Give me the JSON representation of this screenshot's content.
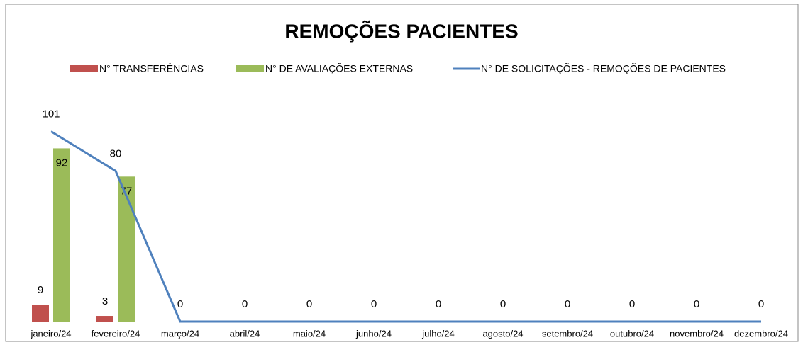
{
  "chart_data": {
    "type": "bar-line",
    "title": "REMOÇÕES PACIENTES",
    "categories": [
      "janeiro/24",
      "fevereiro/24",
      "março/24",
      "abril/24",
      "maio/24",
      "junho/24",
      "julho/24",
      "agosto/24",
      "setembro/24",
      "outubro/24",
      "novembro/24",
      "dezembro/24"
    ],
    "series": [
      {
        "name": "N° TRANSFERÊNCIAS",
        "type": "bar",
        "color": "#c0504d",
        "values": [
          9,
          3,
          null,
          null,
          null,
          null,
          null,
          null,
          null,
          null,
          null,
          null
        ]
      },
      {
        "name": "N° DE AVALIAÇÕES EXTERNAS",
        "type": "bar",
        "color": "#9bbb59",
        "values": [
          92,
          77,
          null,
          null,
          null,
          null,
          null,
          null,
          null,
          null,
          null,
          null
        ]
      },
      {
        "name": "N° DE SOLICITAÇÕES - REMOÇÕES DE PACIENTES",
        "type": "line",
        "color": "#4f81bd",
        "values": [
          101,
          80,
          0,
          0,
          0,
          0,
          0,
          0,
          0,
          0,
          0,
          0
        ]
      }
    ],
    "ylim": [
      0,
      120
    ],
    "legend": "top"
  }
}
